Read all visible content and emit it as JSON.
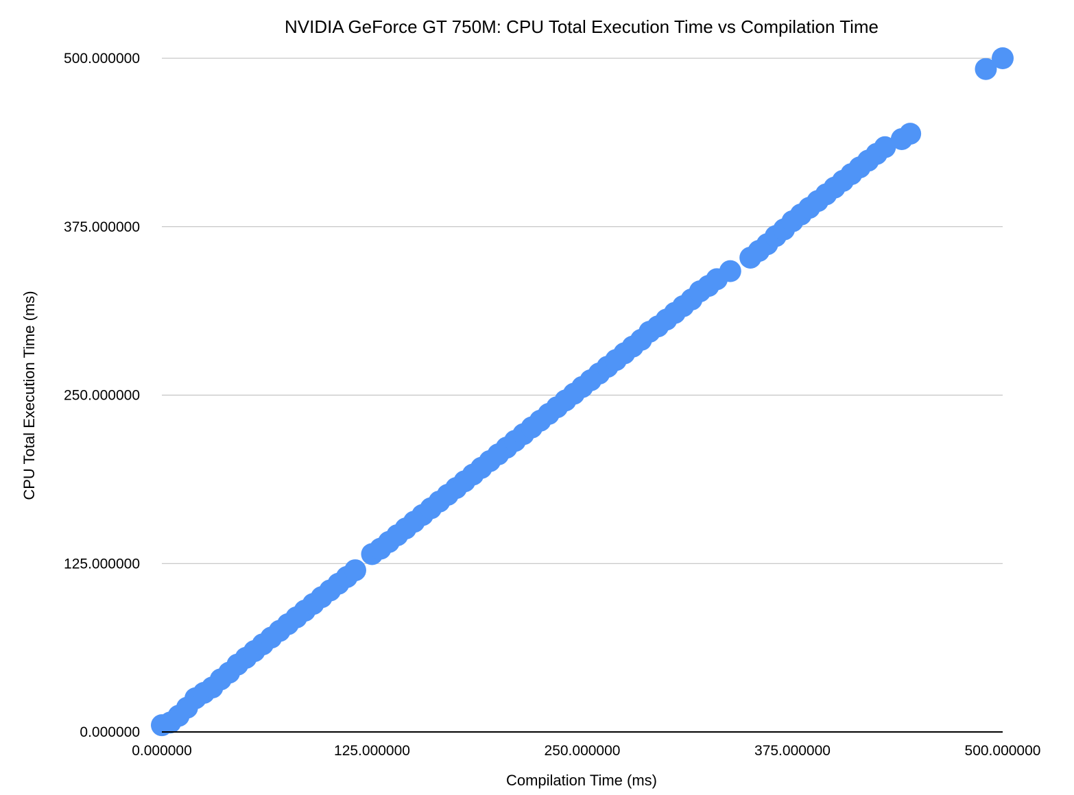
{
  "colors": {
    "point": "#4f94f7",
    "grid": "#b8b8b8",
    "axis": "#000000",
    "background": "#ffffff"
  },
  "chart_data": {
    "type": "scatter",
    "title": "NVIDIA GeForce GT 750M: CPU Total Execution Time vs Compilation Time",
    "xlabel": "Compilation Time (ms)",
    "ylabel": "CPU Total Execution Time (ms)",
    "xlim": [
      0,
      500
    ],
    "ylim": [
      0,
      500
    ],
    "x_ticks": [
      0,
      125,
      250,
      375,
      500
    ],
    "y_ticks": [
      0,
      125,
      250,
      375,
      500
    ],
    "x_tick_labels": [
      "0.000000",
      "125.000000",
      "250.000000",
      "375.000000",
      "500.000000"
    ],
    "y_tick_labels": [
      "0.000000",
      "125.000000",
      "250.000000",
      "375.000000",
      "500.000000"
    ],
    "grid": "horizontal",
    "legend": "none",
    "series": [
      {
        "points": [
          [
            0,
            5
          ],
          [
            5,
            7
          ],
          [
            10,
            12
          ],
          [
            15,
            18
          ],
          [
            20,
            25
          ],
          [
            25,
            29
          ],
          [
            30,
            33
          ],
          [
            35,
            39
          ],
          [
            40,
            44
          ],
          [
            45,
            50
          ],
          [
            50,
            55
          ],
          [
            55,
            60
          ],
          [
            60,
            65
          ],
          [
            65,
            70
          ],
          [
            70,
            75
          ],
          [
            75,
            80
          ],
          [
            80,
            85
          ],
          [
            85,
            90
          ],
          [
            90,
            95
          ],
          [
            95,
            100
          ],
          [
            100,
            105
          ],
          [
            105,
            110
          ],
          [
            110,
            115
          ],
          [
            115,
            120
          ],
          [
            125,
            132
          ],
          [
            130,
            136
          ],
          [
            135,
            141
          ],
          [
            140,
            146
          ],
          [
            145,
            151
          ],
          [
            150,
            156
          ],
          [
            155,
            161
          ],
          [
            160,
            166
          ],
          [
            165,
            171
          ],
          [
            170,
            176
          ],
          [
            175,
            181
          ],
          [
            180,
            186
          ],
          [
            185,
            191
          ],
          [
            190,
            196
          ],
          [
            195,
            201
          ],
          [
            200,
            206
          ],
          [
            205,
            211
          ],
          [
            210,
            216
          ],
          [
            215,
            221
          ],
          [
            220,
            226
          ],
          [
            225,
            231
          ],
          [
            230,
            236
          ],
          [
            235,
            241
          ],
          [
            240,
            246
          ],
          [
            245,
            251
          ],
          [
            250,
            256
          ],
          [
            255,
            261
          ],
          [
            260,
            266
          ],
          [
            265,
            271
          ],
          [
            270,
            276
          ],
          [
            275,
            281
          ],
          [
            280,
            286
          ],
          [
            285,
            291
          ],
          [
            290,
            297
          ],
          [
            295,
            301
          ],
          [
            300,
            306
          ],
          [
            305,
            311
          ],
          [
            310,
            316
          ],
          [
            315,
            321
          ],
          [
            320,
            327
          ],
          [
            325,
            331
          ],
          [
            330,
            336
          ],
          [
            338,
            342
          ],
          [
            350,
            352
          ],
          [
            355,
            357
          ],
          [
            360,
            362
          ],
          [
            365,
            368
          ],
          [
            370,
            373
          ],
          [
            375,
            379
          ],
          [
            380,
            384
          ],
          [
            385,
            389
          ],
          [
            390,
            394
          ],
          [
            395,
            399
          ],
          [
            400,
            404
          ],
          [
            405,
            409
          ],
          [
            410,
            414
          ],
          [
            415,
            419
          ],
          [
            420,
            424
          ],
          [
            425,
            429
          ],
          [
            430,
            434
          ],
          [
            440,
            440
          ],
          [
            445,
            444
          ],
          [
            490,
            492
          ],
          [
            500,
            500
          ]
        ]
      }
    ]
  }
}
